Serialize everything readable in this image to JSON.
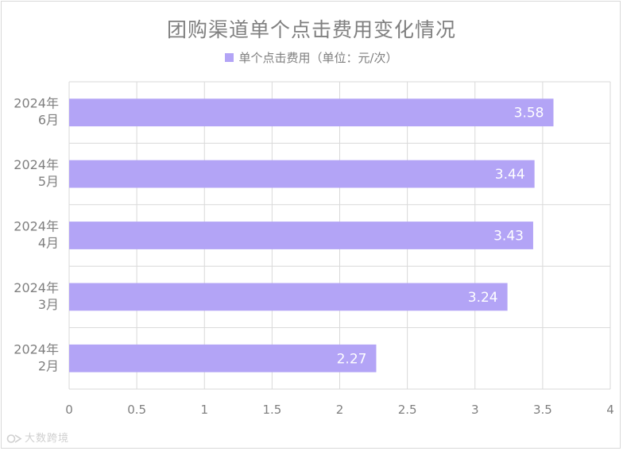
{
  "chart_data": {
    "type": "bar",
    "orientation": "horizontal",
    "title": "团购渠道单个点击费用变化情况",
    "categories": [
      "2024年6月",
      "2024年5月",
      "2024年4月",
      "2024年3月",
      "2024年2月"
    ],
    "category_lines": [
      [
        "2024年",
        "6月"
      ],
      [
        "2024年",
        "5月"
      ],
      [
        "2024年",
        "4月"
      ],
      [
        "2024年",
        "3月"
      ],
      [
        "2024年",
        "2月"
      ]
    ],
    "series": [
      {
        "name": "单个点击费用（单位：元/次）",
        "values": [
          3.58,
          3.44,
          3.43,
          3.24,
          2.27
        ]
      }
    ],
    "data_labels": [
      "3.58",
      "3.44",
      "3.43",
      "3.24",
      "2.27"
    ],
    "x_ticks": [
      "0",
      "0.5",
      "1",
      "1.5",
      "2",
      "2.5",
      "3",
      "3.5",
      "4"
    ],
    "xlim": [
      0,
      4
    ],
    "grid": true,
    "legend_position": "top",
    "colors": {
      "bar": "#b3a4f6",
      "grid": "#d9d9d9",
      "text": "#7f7f7f",
      "label": "#ffffff"
    }
  },
  "watermark": {
    "text": "大数跨境"
  }
}
